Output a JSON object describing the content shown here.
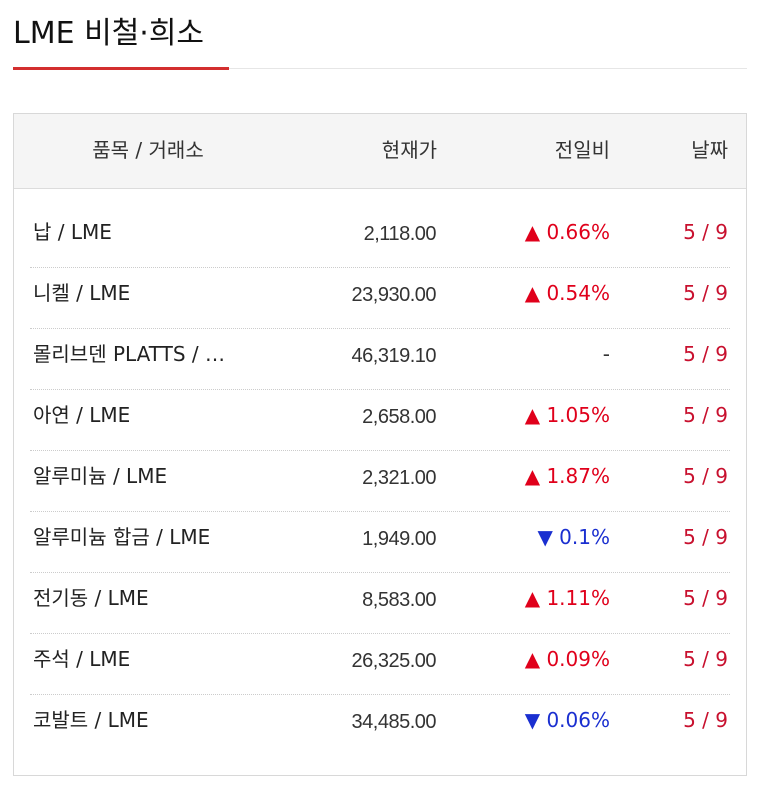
{
  "header": {
    "title": "LME 비철·희소"
  },
  "table": {
    "columns": [
      "품목 / 거래소",
      "현재가",
      "전일비",
      "날짜"
    ],
    "rows": [
      {
        "name": "납 / LME",
        "price": "2,118.00",
        "change": "▲ 0.66%",
        "change_color": "#e0001b",
        "date": "5 / 9"
      },
      {
        "name": "니켈 / LME",
        "price": "23,930.00",
        "change": "▲ 0.54%",
        "change_color": "#e0001b",
        "date": "5 / 9"
      },
      {
        "name": "몰리브덴 PLATTS / …",
        "price": "46,319.10",
        "change": "-",
        "change_color": "#333333",
        "date": "5 / 9"
      },
      {
        "name": "아연 / LME",
        "price": "2,658.00",
        "change": "▲ 1.05%",
        "change_color": "#e0001b",
        "date": "5 / 9"
      },
      {
        "name": "알루미늄 / LME",
        "price": "2,321.00",
        "change": "▲ 1.87%",
        "change_color": "#e0001b",
        "date": "5 / 9"
      },
      {
        "name": "알루미늄 합금 / LME",
        "price": "1,949.00",
        "change": "▼ 0.1%",
        "change_color": "#1a2fd0",
        "date": "5 / 9"
      },
      {
        "name": "전기동 / LME",
        "price": "8,583.00",
        "change": "▲ 1.11%",
        "change_color": "#e0001b",
        "date": "5 / 9"
      },
      {
        "name": "주석 / LME",
        "price": "26,325.00",
        "change": "▲ 0.09%",
        "change_color": "#e0001b",
        "date": "5 / 9"
      },
      {
        "name": "코발트 / LME",
        "price": "34,485.00",
        "change": "▼ 0.06%",
        "change_color": "#1a2fd0",
        "date": "5 / 9"
      }
    ]
  }
}
